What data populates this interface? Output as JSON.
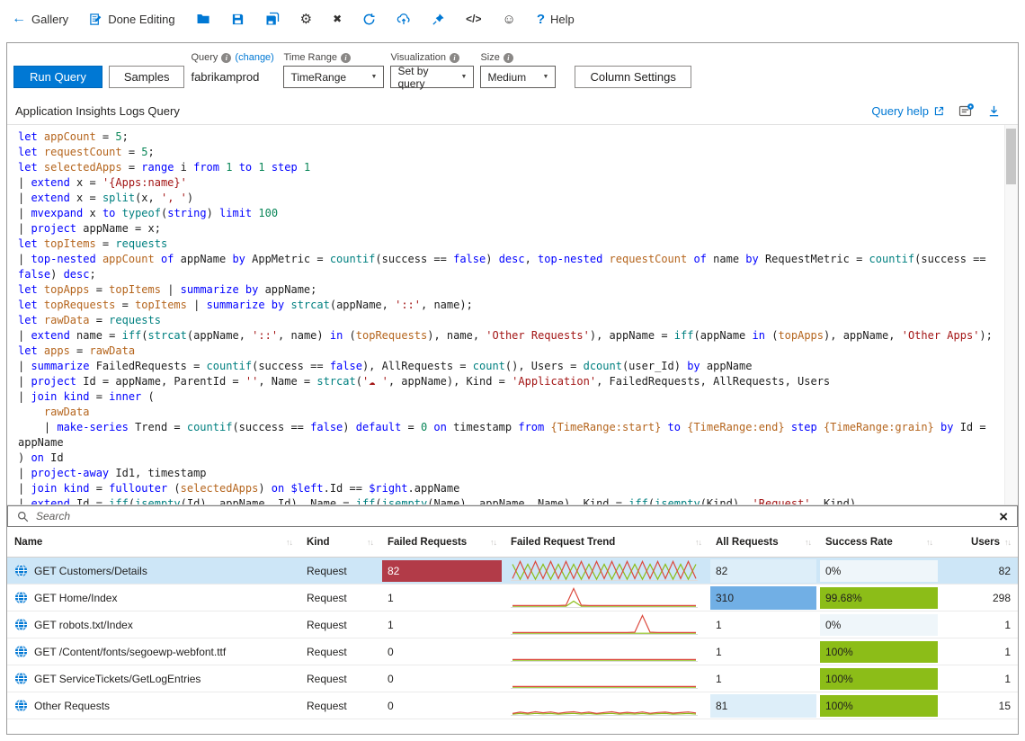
{
  "colors": {
    "accent": "#0078d4",
    "row_selected": "#cde6f7"
  },
  "toolbar": {
    "gallery_label": "Gallery",
    "done_editing_label": "Done Editing",
    "help_label": "Help",
    "icons": {
      "back": "←",
      "gear": "⚙",
      "close": "✖",
      "smiley": "☺",
      "code": "</>",
      "help_q": "?"
    }
  },
  "controls": {
    "run_query": "Run Query",
    "samples": "Samples",
    "query_label": "Query",
    "query_change": "(change)",
    "query_value": "fabrikamprod",
    "time_range_label": "Time Range",
    "time_range_value": "TimeRange",
    "visualization_label": "Visualization",
    "visualization_value": "Set by query",
    "size_label": "Size",
    "size_value": "Medium",
    "column_settings": "Column Settings",
    "caret": "▼"
  },
  "editor": {
    "title": "Application Insights Logs Query",
    "query_help_label": "Query help",
    "token_colors": {
      "k": "#0000ff",
      "f": "#008080",
      "s": "#a31515",
      "n": "#098658",
      "i": "#b5651d",
      "p": "#1e1e1e"
    },
    "code": [
      [
        [
          "k",
          "let "
        ],
        [
          "i",
          "appCount"
        ],
        [
          "p",
          " = "
        ],
        [
          "n",
          "5"
        ],
        [
          "p",
          ";"
        ]
      ],
      [
        [
          "k",
          "let "
        ],
        [
          "i",
          "requestCount"
        ],
        [
          "p",
          " = "
        ],
        [
          "n",
          "5"
        ],
        [
          "p",
          ";"
        ]
      ],
      [
        [
          "k",
          "let "
        ],
        [
          "i",
          "selectedApps"
        ],
        [
          "p",
          " = "
        ],
        [
          "k",
          "range "
        ],
        [
          "p",
          "i "
        ],
        [
          "k",
          "from "
        ],
        [
          "n",
          "1"
        ],
        [
          "k",
          " to "
        ],
        [
          "n",
          "1"
        ],
        [
          "k",
          " step "
        ],
        [
          "n",
          "1"
        ]
      ],
      [
        [
          "p",
          "| "
        ],
        [
          "k",
          "extend "
        ],
        [
          "p",
          "x = "
        ],
        [
          "s",
          "'{Apps:name}'"
        ]
      ],
      [
        [
          "p",
          "| "
        ],
        [
          "k",
          "extend "
        ],
        [
          "p",
          "x = "
        ],
        [
          "f",
          "split"
        ],
        [
          "p",
          "(x, "
        ],
        [
          "s",
          "', '"
        ],
        [
          "p",
          ")"
        ]
      ],
      [
        [
          "p",
          "| "
        ],
        [
          "k",
          "mvexpand "
        ],
        [
          "p",
          "x "
        ],
        [
          "k",
          "to "
        ],
        [
          "f",
          "typeof"
        ],
        [
          "p",
          "("
        ],
        [
          "k",
          "string"
        ],
        [
          "p",
          ") "
        ],
        [
          "k",
          "limit "
        ],
        [
          "n",
          "100"
        ]
      ],
      [
        [
          "p",
          "| "
        ],
        [
          "k",
          "project "
        ],
        [
          "p",
          "appName = x;"
        ]
      ],
      [
        [
          "k",
          "let "
        ],
        [
          "i",
          "topItems"
        ],
        [
          "p",
          " = "
        ],
        [
          "f",
          "requests"
        ]
      ],
      [
        [
          "p",
          "| "
        ],
        [
          "k",
          "top-nested "
        ],
        [
          "i",
          "appCount"
        ],
        [
          "k",
          " of "
        ],
        [
          "p",
          "appName "
        ],
        [
          "k",
          "by "
        ],
        [
          "p",
          "AppMetric = "
        ],
        [
          "f",
          "countif"
        ],
        [
          "p",
          "(success == "
        ],
        [
          "k",
          "false"
        ],
        [
          "p",
          ") "
        ],
        [
          "k",
          "desc"
        ],
        [
          "p",
          ", "
        ],
        [
          "k",
          "top-nested "
        ],
        [
          "i",
          "requestCount"
        ],
        [
          "k",
          " of "
        ],
        [
          "p",
          "name "
        ],
        [
          "k",
          "by "
        ],
        [
          "p",
          "RequestMetric = "
        ],
        [
          "f",
          "countif"
        ],
        [
          "p",
          "(success =="
        ]
      ],
      [
        [
          "k",
          "false"
        ],
        [
          "p",
          ") "
        ],
        [
          "k",
          "desc"
        ],
        [
          "p",
          ";"
        ]
      ],
      [
        [
          "k",
          "let "
        ],
        [
          "i",
          "topApps"
        ],
        [
          "p",
          " = "
        ],
        [
          "i",
          "topItems"
        ],
        [
          "p",
          " | "
        ],
        [
          "k",
          "summarize by "
        ],
        [
          "p",
          "appName;"
        ]
      ],
      [
        [
          "k",
          "let "
        ],
        [
          "i",
          "topRequests"
        ],
        [
          "p",
          " = "
        ],
        [
          "i",
          "topItems"
        ],
        [
          "p",
          " | "
        ],
        [
          "k",
          "summarize by "
        ],
        [
          "f",
          "strcat"
        ],
        [
          "p",
          "(appName, "
        ],
        [
          "s",
          "'::'"
        ],
        [
          "p",
          ", name);"
        ]
      ],
      [
        [
          "k",
          "let "
        ],
        [
          "i",
          "rawData"
        ],
        [
          "p",
          " = "
        ],
        [
          "f",
          "requests"
        ]
      ],
      [
        [
          "p",
          "| "
        ],
        [
          "k",
          "extend "
        ],
        [
          "p",
          "name = "
        ],
        [
          "f",
          "iff"
        ],
        [
          "p",
          "("
        ],
        [
          "f",
          "strcat"
        ],
        [
          "p",
          "(appName, "
        ],
        [
          "s",
          "'::'"
        ],
        [
          "p",
          ", name) "
        ],
        [
          "k",
          "in "
        ],
        [
          "p",
          "("
        ],
        [
          "i",
          "topRequests"
        ],
        [
          "p",
          "), name, "
        ],
        [
          "s",
          "'Other Requests'"
        ],
        [
          "p",
          "), appName = "
        ],
        [
          "f",
          "iff"
        ],
        [
          "p",
          "(appName "
        ],
        [
          "k",
          "in "
        ],
        [
          "p",
          "("
        ],
        [
          "i",
          "topApps"
        ],
        [
          "p",
          "), appName, "
        ],
        [
          "s",
          "'Other Apps'"
        ],
        [
          "p",
          ");"
        ]
      ],
      [
        [
          "k",
          "let "
        ],
        [
          "i",
          "apps"
        ],
        [
          "p",
          " = "
        ],
        [
          "i",
          "rawData"
        ]
      ],
      [
        [
          "p",
          "| "
        ],
        [
          "k",
          "summarize "
        ],
        [
          "p",
          "FailedRequests = "
        ],
        [
          "f",
          "countif"
        ],
        [
          "p",
          "(success == "
        ],
        [
          "k",
          "false"
        ],
        [
          "p",
          "), AllRequests = "
        ],
        [
          "f",
          "count"
        ],
        [
          "p",
          "(), Users = "
        ],
        [
          "f",
          "dcount"
        ],
        [
          "p",
          "(user_Id) "
        ],
        [
          "k",
          "by "
        ],
        [
          "p",
          "appName"
        ]
      ],
      [
        [
          "p",
          "| "
        ],
        [
          "k",
          "project "
        ],
        [
          "p",
          "Id = appName, ParentId = "
        ],
        [
          "s",
          "''"
        ],
        [
          "p",
          ", Name = "
        ],
        [
          "f",
          "strcat"
        ],
        [
          "p",
          "("
        ],
        [
          "s",
          "'☁ '"
        ],
        [
          "p",
          ", appName), Kind = "
        ],
        [
          "s",
          "'Application'"
        ],
        [
          "p",
          ", FailedRequests, AllRequests, Users"
        ]
      ],
      [
        [
          "p",
          "| "
        ],
        [
          "k",
          "join kind "
        ],
        [
          "p",
          "= "
        ],
        [
          "k",
          "inner "
        ],
        [
          "p",
          "("
        ]
      ],
      [
        [
          "p",
          "    "
        ],
        [
          "i",
          "rawData"
        ]
      ],
      [
        [
          "p",
          "    | "
        ],
        [
          "k",
          "make-series "
        ],
        [
          "p",
          "Trend = "
        ],
        [
          "f",
          "countif"
        ],
        [
          "p",
          "(success == "
        ],
        [
          "k",
          "false"
        ],
        [
          "p",
          ") "
        ],
        [
          "k",
          "default "
        ],
        [
          "p",
          "= "
        ],
        [
          "n",
          "0"
        ],
        [
          "k",
          " on "
        ],
        [
          "p",
          "timestamp "
        ],
        [
          "k",
          "from "
        ],
        [
          "i",
          "{TimeRange:start}"
        ],
        [
          "k",
          " to "
        ],
        [
          "i",
          "{TimeRange:end}"
        ],
        [
          "k",
          " step "
        ],
        [
          "i",
          "{TimeRange:grain}"
        ],
        [
          "k",
          " by "
        ],
        [
          "p",
          "Id ="
        ]
      ],
      [
        [
          "p",
          "appName"
        ]
      ],
      [
        [
          "p",
          ") "
        ],
        [
          "k",
          "on "
        ],
        [
          "p",
          "Id"
        ]
      ],
      [
        [
          "p",
          "| "
        ],
        [
          "k",
          "project-away "
        ],
        [
          "p",
          "Id1, timestamp"
        ]
      ],
      [
        [
          "p",
          "| "
        ],
        [
          "k",
          "join kind "
        ],
        [
          "p",
          "= "
        ],
        [
          "k",
          "fullouter "
        ],
        [
          "p",
          "("
        ],
        [
          "i",
          "selectedApps"
        ],
        [
          "p",
          ") "
        ],
        [
          "k",
          "on "
        ],
        [
          "k",
          "$left"
        ],
        [
          "p",
          ".Id == "
        ],
        [
          "k",
          "$right"
        ],
        [
          "p",
          ".appName"
        ]
      ],
      [
        [
          "p",
          "| "
        ],
        [
          "k",
          "extend "
        ],
        [
          "p",
          "Id = "
        ],
        [
          "f",
          "iff"
        ],
        [
          "p",
          "("
        ],
        [
          "f",
          "isempty"
        ],
        [
          "p",
          "(Id), appName, Id), Name = "
        ],
        [
          "f",
          "iff"
        ],
        [
          "p",
          "("
        ],
        [
          "f",
          "isempty"
        ],
        [
          "p",
          "(Name), appName, Name), Kind = "
        ],
        [
          "f",
          "iff"
        ],
        [
          "p",
          "("
        ],
        [
          "f",
          "isempty"
        ],
        [
          "p",
          "(Kind), "
        ],
        [
          "s",
          "'Request'"
        ],
        [
          "p",
          ", Kind)"
        ]
      ]
    ]
  },
  "search": {
    "placeholder": "Search",
    "close_icon": "×"
  },
  "table": {
    "sort_icon": "↑↓",
    "columns": [
      {
        "label": "Name"
      },
      {
        "label": "Kind"
      },
      {
        "label": "Failed Requests"
      },
      {
        "label": "Failed Request Trend"
      },
      {
        "label": "All Requests"
      },
      {
        "label": "Success Rate"
      },
      {
        "label": "Users"
      }
    ],
    "trend_colors": {
      "red": "#dc4a3e",
      "green": "#8cbd18"
    },
    "fill_colors": {
      "red": "#b23b48",
      "strong": "#71afe5",
      "light": "#ddeef9",
      "green": "#8cbd18",
      "pale": "#eff6fa"
    },
    "trends": {
      "zigzag": {
        "red": [
          0,
          1,
          0,
          1,
          0,
          1,
          0,
          1,
          0,
          1,
          0,
          1,
          0,
          1,
          0,
          1,
          0,
          1,
          0,
          1,
          0,
          1,
          0,
          1,
          0
        ],
        "green": [
          0.88,
          0,
          0.88,
          0,
          0.88,
          0,
          0.88,
          0,
          0.88,
          0,
          0.88,
          0,
          0.88,
          0,
          0.88,
          0,
          0.88,
          0,
          0.88,
          0,
          0.88,
          0,
          0.88,
          0,
          0.88
        ]
      },
      "spike1": {
        "red": [
          0,
          0,
          0,
          0,
          0,
          0,
          0,
          0.02,
          1,
          0.02,
          0,
          0,
          0,
          0,
          0,
          0,
          0,
          0,
          0,
          0,
          0,
          0,
          0,
          0,
          0
        ],
        "green": [
          0,
          0,
          0,
          0,
          0,
          0,
          0,
          0,
          0.3,
          0,
          0,
          0,
          0,
          0,
          0,
          0,
          0,
          0,
          0,
          0,
          0,
          0,
          0,
          0,
          0
        ]
      },
      "spike2": {
        "red": [
          0,
          0,
          0,
          0,
          0,
          0,
          0,
          0,
          0,
          0,
          0,
          0,
          0,
          0,
          0,
          0,
          0.02,
          1,
          0.02,
          0,
          0,
          0,
          0,
          0,
          0
        ],
        "green": [
          0,
          0,
          0,
          0,
          0,
          0,
          0,
          0,
          0,
          0,
          0,
          0,
          0,
          0,
          0,
          0,
          0,
          0,
          0,
          0,
          0,
          0,
          0,
          0,
          0
        ]
      },
      "flat": {
        "red": [
          0,
          0,
          0,
          0,
          0,
          0,
          0,
          0,
          0,
          0,
          0,
          0,
          0,
          0,
          0,
          0,
          0,
          0,
          0,
          0,
          0,
          0,
          0,
          0,
          0
        ],
        "green": [
          0,
          0,
          0,
          0,
          0,
          0,
          0,
          0,
          0,
          0,
          0,
          0,
          0,
          0,
          0,
          0,
          0,
          0,
          0,
          0,
          0,
          0,
          0,
          0,
          0
        ]
      },
      "wiggle": {
        "red": [
          0,
          0.08,
          0.02,
          0.1,
          0.04,
          0.09,
          0.01,
          0.07,
          0.1,
          0.03,
          0.08,
          0,
          0.06,
          0.1,
          0.02,
          0.07,
          0.03,
          0.09,
          0.01,
          0.06,
          0.08,
          0.02,
          0.05,
          0.09,
          0.03
        ],
        "green": [
          0,
          0.04,
          0,
          0.05,
          0.02,
          0.04,
          0,
          0.03,
          0.05,
          0.01,
          0.04,
          0,
          0.03,
          0.05,
          0,
          0.03,
          0.01,
          0.04,
          0,
          0.03,
          0.04,
          0,
          0.02,
          0.04,
          0.01
        ]
      }
    },
    "rows": [
      {
        "name": "GET Customers/Details",
        "kind": "Request",
        "failed": "82",
        "failed_bar": true,
        "trend": "zigzag",
        "all": "82",
        "all_fill": "light",
        "success": "0%",
        "success_fill": "pale",
        "users": "82",
        "selected": true
      },
      {
        "name": "GET Home/Index",
        "kind": "Request",
        "failed": "1",
        "failed_bar": false,
        "trend": "spike1",
        "all": "310",
        "all_fill": "strong",
        "success": "99.68%",
        "success_fill": "green",
        "users": "298",
        "selected": false
      },
      {
        "name": "GET robots.txt/Index",
        "kind": "Request",
        "failed": "1",
        "failed_bar": false,
        "trend": "spike2",
        "all": "1",
        "all_fill": null,
        "success": "0%",
        "success_fill": "pale",
        "users": "1",
        "selected": false
      },
      {
        "name": "GET /Content/fonts/segoewp-webfont.ttf",
        "kind": "Request",
        "failed": "0",
        "failed_bar": false,
        "trend": "flat",
        "all": "1",
        "all_fill": null,
        "success": "100%",
        "success_fill": "green",
        "users": "1",
        "selected": false
      },
      {
        "name": "GET ServiceTickets/GetLogEntries",
        "kind": "Request",
        "failed": "0",
        "failed_bar": false,
        "trend": "flat",
        "all": "1",
        "all_fill": null,
        "success": "100%",
        "success_fill": "green",
        "users": "1",
        "selected": false
      },
      {
        "name": "Other Requests",
        "kind": "Request",
        "failed": "0",
        "failed_bar": false,
        "trend": "wiggle",
        "all": "81",
        "all_fill": "light",
        "success": "100%",
        "success_fill": "green",
        "users": "15",
        "selected": false
      }
    ]
  }
}
